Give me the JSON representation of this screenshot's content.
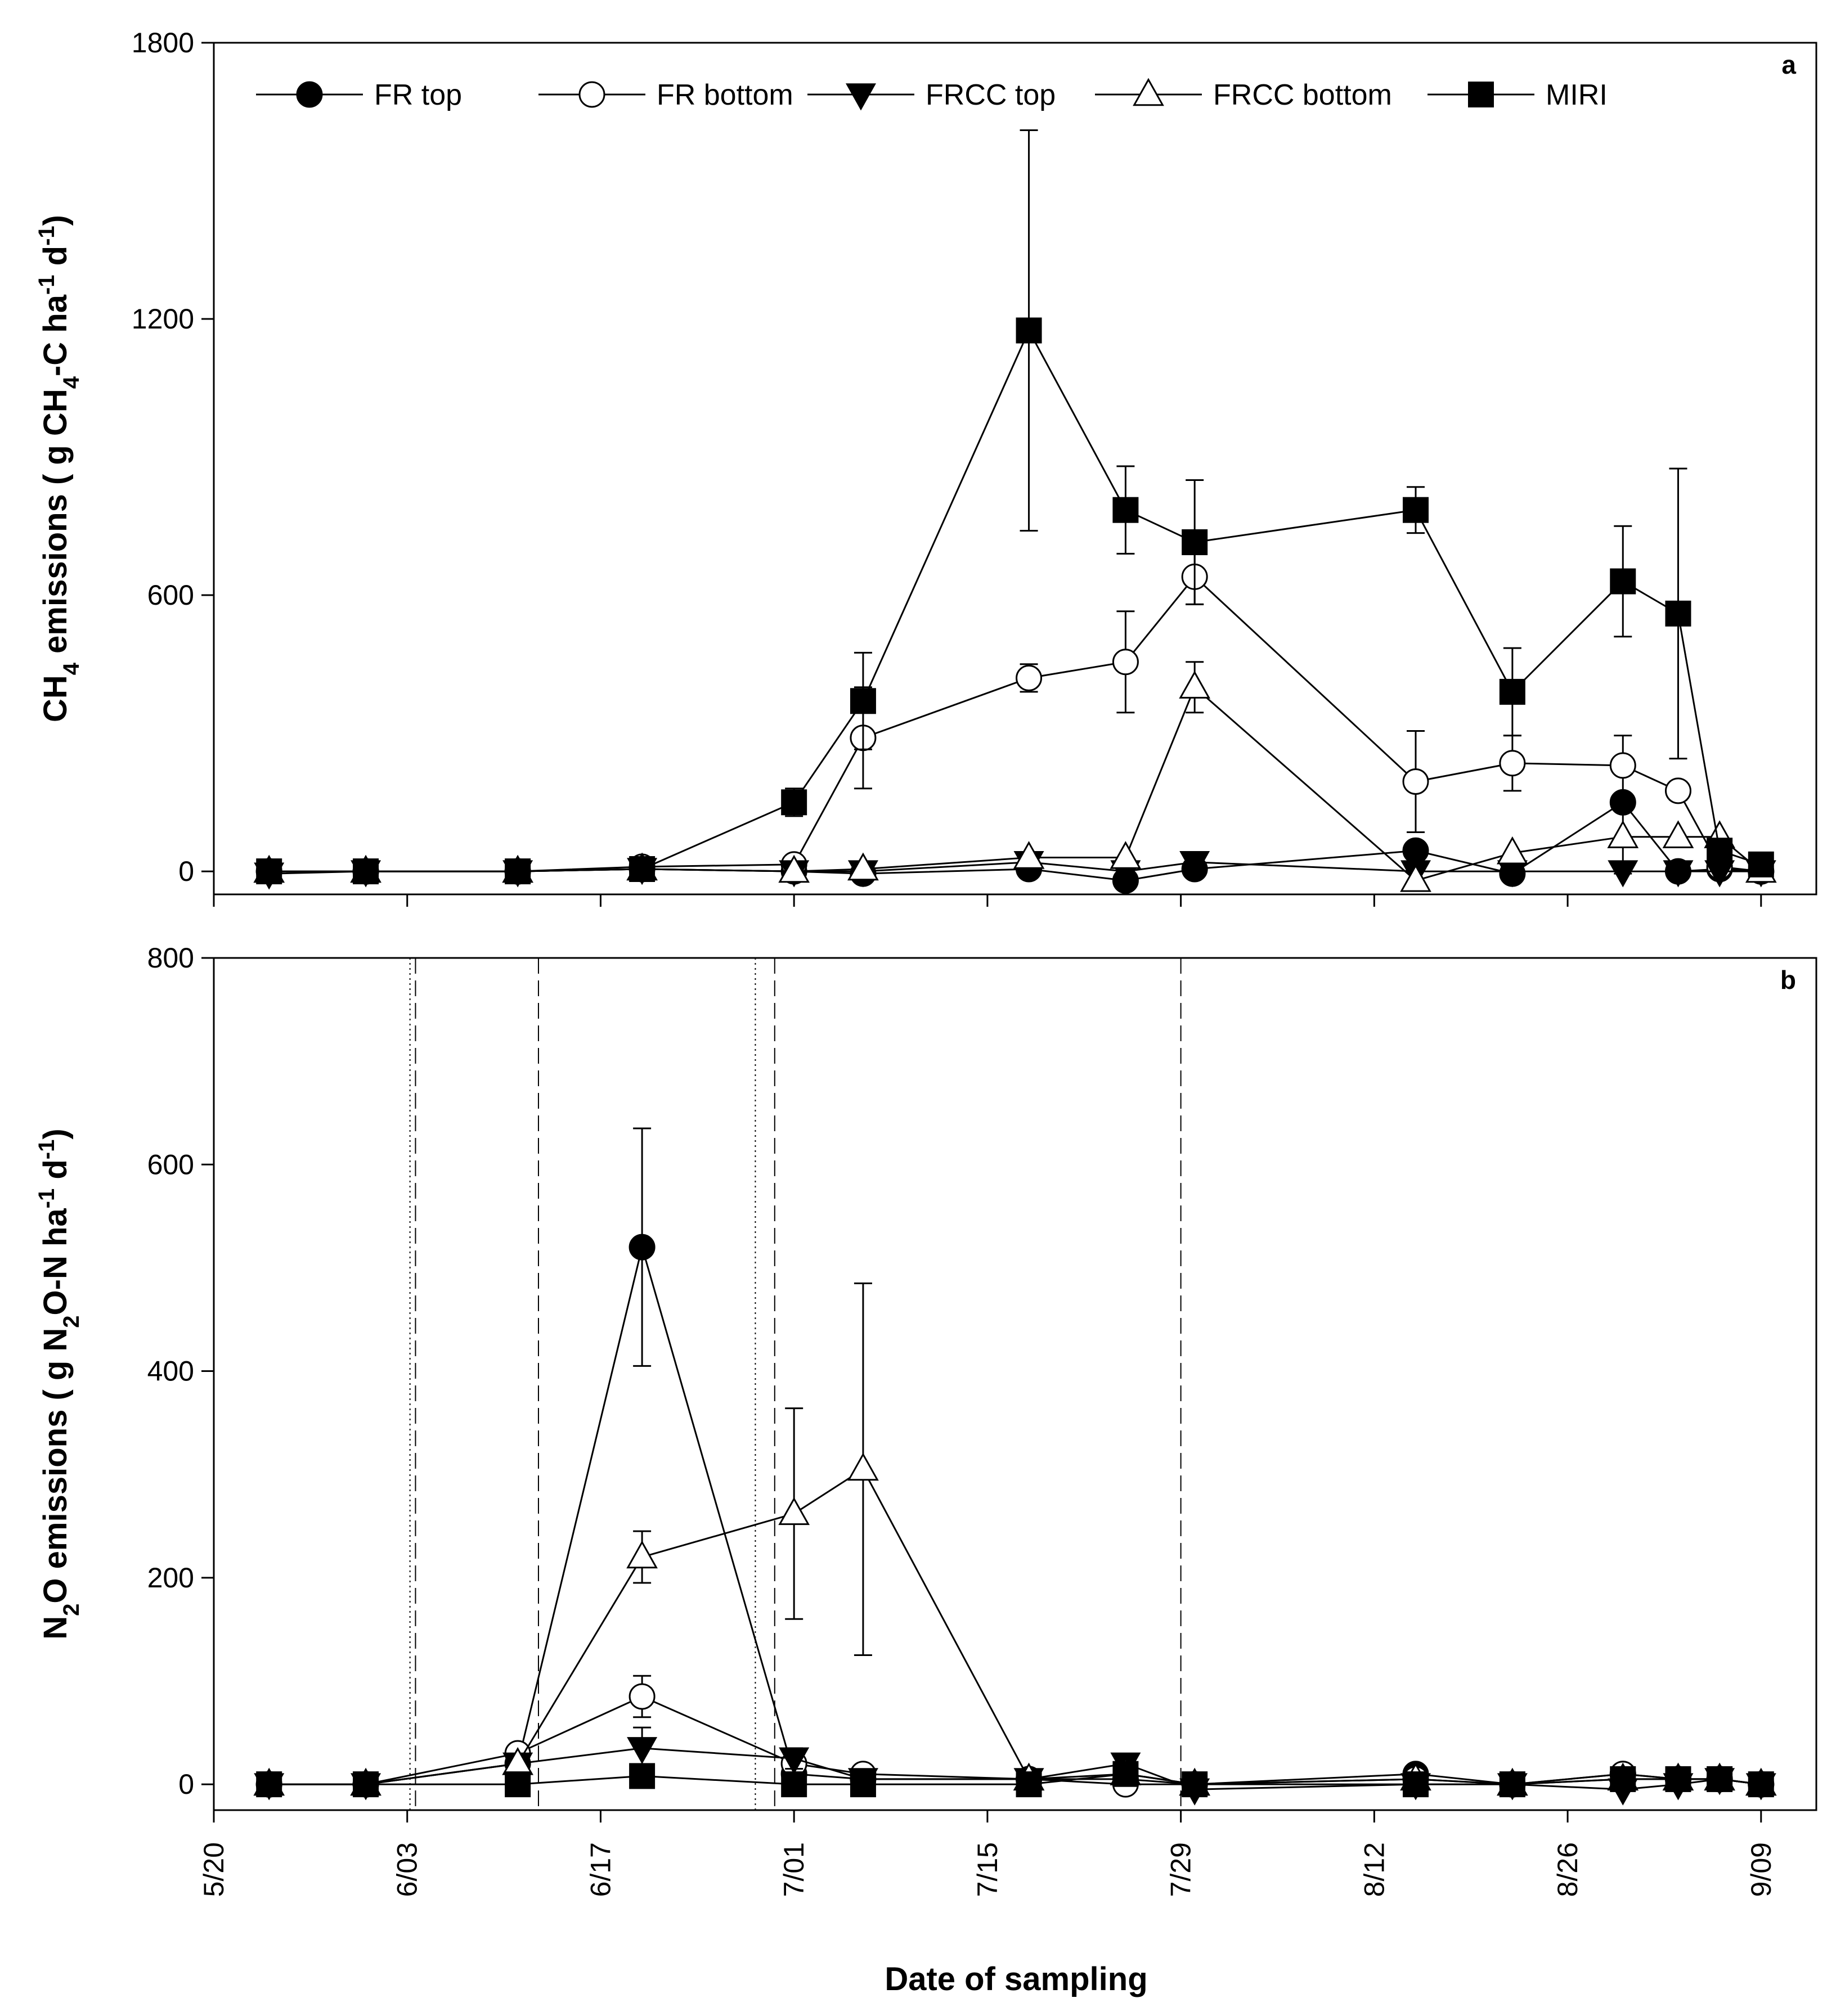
{
  "chart_data": [
    {
      "type": "line",
      "panel_label": "a",
      "ylabel_parts": [
        "CH",
        "4",
        " emissions ( g CH",
        "4",
        "-C ha",
        "-1",
        " d",
        "-1",
        ")"
      ],
      "xlabel": "",
      "x_tick_labels": [
        "5/20",
        "6/03",
        "6/17",
        "7/01",
        "7/15",
        "7/29",
        "8/12",
        "8/26",
        "9/09"
      ],
      "x_tick_days": [
        0,
        14,
        28,
        42,
        56,
        70,
        84,
        98,
        112
      ],
      "xlim": [
        0,
        116
      ],
      "ylim": [
        -50,
        1800
      ],
      "y_ticks": [
        0,
        600,
        1200,
        1800
      ],
      "legend_position": "top",
      "series": [
        {
          "name": "FR top",
          "marker": "circle-filled",
          "x": [
            4,
            11,
            22,
            31,
            42,
            47,
            59,
            66,
            71,
            87,
            94,
            102,
            106,
            109,
            112
          ],
          "y": [
            0,
            0,
            0,
            5,
            0,
            -5,
            5,
            -20,
            5,
            45,
            -5,
            150,
            0,
            5,
            0
          ],
          "err": [
            0,
            0,
            0,
            0,
            0,
            0,
            0,
            0,
            0,
            0,
            0,
            0,
            0,
            0,
            0
          ]
        },
        {
          "name": "FR bottom",
          "marker": "circle-open",
          "x": [
            4,
            11,
            22,
            31,
            42,
            47,
            59,
            66,
            71,
            87,
            94,
            102,
            106,
            109,
            112
          ],
          "y": [
            0,
            0,
            0,
            10,
            15,
            290,
            420,
            455,
            640,
            195,
            235,
            230,
            175,
            10,
            0
          ],
          "err": [
            0,
            0,
            0,
            0,
            0,
            110,
            30,
            110,
            60,
            110,
            60,
            65,
            20,
            0,
            0
          ]
        },
        {
          "name": "FRCC top",
          "marker": "triangle-down-filled",
          "x": [
            4,
            11,
            22,
            31,
            42,
            47,
            59,
            66,
            71,
            87,
            94,
            102,
            106,
            109,
            112
          ],
          "y": [
            -5,
            0,
            0,
            5,
            0,
            0,
            20,
            0,
            20,
            0,
            0,
            0,
            0,
            0,
            0
          ],
          "err": [
            0,
            0,
            0,
            0,
            0,
            0,
            0,
            0,
            0,
            0,
            0,
            0,
            0,
            0,
            0
          ]
        },
        {
          "name": "FRCC bottom",
          "marker": "triangle-up-open",
          "x": [
            4,
            11,
            22,
            31,
            42,
            47,
            59,
            66,
            71,
            87,
            94,
            102,
            106,
            109,
            112
          ],
          "y": [
            0,
            0,
            0,
            5,
            0,
            5,
            30,
            30,
            400,
            -20,
            40,
            75,
            75,
            75,
            0
          ],
          "err": [
            0,
            0,
            0,
            0,
            0,
            0,
            0,
            0,
            55,
            0,
            0,
            80,
            0,
            0,
            0
          ]
        },
        {
          "name": "MIRI",
          "marker": "square-filled",
          "x": [
            4,
            11,
            22,
            31,
            42,
            47,
            59,
            66,
            71,
            87,
            94,
            102,
            106,
            109,
            112
          ],
          "y": [
            0,
            0,
            0,
            5,
            150,
            370,
            1175,
            785,
            715,
            785,
            390,
            630,
            560,
            45,
            15
          ],
          "err": [
            0,
            0,
            0,
            0,
            30,
            105,
            435,
            95,
            135,
            50,
            95,
            120,
            315,
            0,
            0
          ]
        }
      ]
    },
    {
      "type": "line",
      "panel_label": "b",
      "ylabel_parts": [
        "N",
        "2",
        "O emissions ( g N",
        "2",
        "O-N ha",
        "-1",
        " d",
        "-1",
        ")"
      ],
      "xlabel": "Date of sampling",
      "x_tick_labels": [
        "5/20",
        "6/03",
        "6/17",
        "7/01",
        "7/15",
        "7/29",
        "8/12",
        "8/26",
        "9/09"
      ],
      "x_tick_days": [
        0,
        14,
        28,
        42,
        56,
        70,
        84,
        98,
        112
      ],
      "xlim": [
        0,
        116
      ],
      "ylim": [
        -25,
        800
      ],
      "y_ticks": [
        0,
        200,
        400,
        600,
        800
      ],
      "vlines": [
        {
          "day": 14.2,
          "style": "dotted"
        },
        {
          "day": 14.6,
          "style": "dashed"
        },
        {
          "day": 23.5,
          "style": "dashed"
        },
        {
          "day": 39.2,
          "style": "dotted"
        },
        {
          "day": 40.6,
          "style": "dashed"
        },
        {
          "day": 70.0,
          "style": "dashed"
        }
      ],
      "series": [
        {
          "name": "FR top",
          "marker": "circle-filled",
          "x": [
            4,
            11,
            22,
            31,
            42,
            47,
            59,
            66,
            71,
            87,
            94,
            102,
            106,
            109,
            112
          ],
          "y": [
            0,
            0,
            20,
            520,
            10,
            5,
            5,
            5,
            0,
            10,
            0,
            10,
            5,
            5,
            0
          ],
          "err": [
            0,
            0,
            0,
            115,
            0,
            0,
            0,
            0,
            0,
            0,
            0,
            0,
            0,
            0,
            0
          ]
        },
        {
          "name": "FR bottom",
          "marker": "circle-open",
          "x": [
            4,
            11,
            22,
            31,
            42,
            47,
            59,
            66,
            71,
            87,
            94,
            102,
            106,
            109,
            112
          ],
          "y": [
            0,
            0,
            30,
            85,
            20,
            10,
            5,
            0,
            0,
            5,
            0,
            10,
            5,
            5,
            0
          ],
          "err": [
            0,
            0,
            0,
            20,
            0,
            0,
            0,
            0,
            0,
            0,
            0,
            0,
            0,
            0,
            0
          ]
        },
        {
          "name": "FRCC top",
          "marker": "triangle-down-filled",
          "x": [
            4,
            11,
            22,
            31,
            42,
            47,
            59,
            66,
            71,
            87,
            94,
            102,
            106,
            109,
            112
          ],
          "y": [
            0,
            0,
            20,
            35,
            25,
            5,
            5,
            20,
            -5,
            0,
            0,
            -5,
            0,
            5,
            0
          ],
          "err": [
            0,
            0,
            0,
            20,
            10,
            0,
            0,
            0,
            0,
            0,
            0,
            0,
            0,
            0,
            0
          ]
        },
        {
          "name": "FRCC bottom",
          "marker": "triangle-up-open",
          "x": [
            4,
            11,
            22,
            31,
            42,
            47,
            59,
            66,
            71,
            87,
            94,
            102,
            106,
            109,
            112
          ],
          "y": [
            0,
            0,
            20,
            220,
            262,
            305,
            5,
            10,
            0,
            5,
            0,
            5,
            5,
            5,
            0
          ],
          "err": [
            0,
            0,
            0,
            25,
            102,
            180,
            0,
            0,
            0,
            0,
            0,
            0,
            0,
            0,
            0
          ]
        },
        {
          "name": "MIRI",
          "marker": "square-filled",
          "x": [
            4,
            11,
            22,
            31,
            42,
            47,
            59,
            66,
            71,
            87,
            94,
            102,
            106,
            109,
            112
          ],
          "y": [
            0,
            0,
            0,
            8,
            0,
            0,
            0,
            10,
            0,
            0,
            0,
            5,
            5,
            5,
            0
          ],
          "err": [
            0,
            0,
            0,
            0,
            0,
            0,
            0,
            0,
            0,
            0,
            0,
            0,
            0,
            0,
            0
          ]
        }
      ]
    }
  ]
}
